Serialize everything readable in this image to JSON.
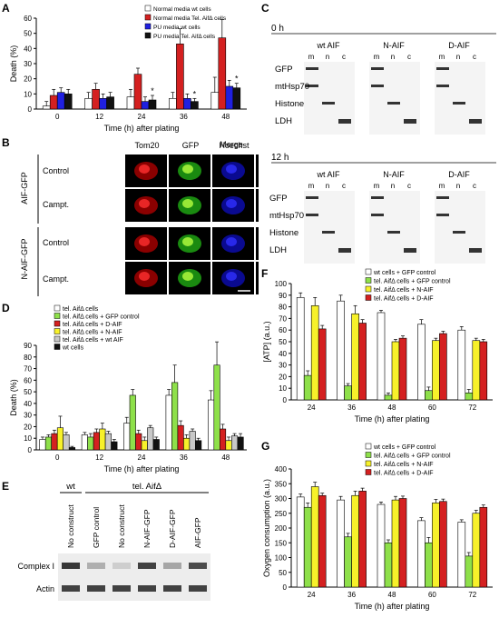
{
  "panels": [
    "A",
    "B",
    "C",
    "D",
    "E",
    "F",
    "G"
  ],
  "colors": {
    "white": "#ffffff",
    "red": "#d42020",
    "blue": "#2020e0",
    "black": "#111111",
    "green": "#8ee04a",
    "yellow": "#f7f12a",
    "grey": "#c8c8c8"
  },
  "chart_data": [
    {
      "panel": "A",
      "type": "bar",
      "categories": [
        "0",
        "12",
        "24",
        "36",
        "48"
      ],
      "xlabel": "Time (h) after plating",
      "ylabel": "Death (%)",
      "ylim": [
        0,
        60
      ],
      "yticks": [
        0,
        10,
        20,
        30,
        40,
        50,
        60
      ],
      "legend": [
        "Normal media wt cells",
        "Normal media Tel. AifΔ cells",
        "PU media wt cells",
        "PU media Tel. AifΔ cells"
      ],
      "series": [
        {
          "name": "Normal media wt cells",
          "color": "#ffffff",
          "values": [
            2,
            7,
            8,
            7,
            11
          ],
          "err": [
            3,
            4,
            5,
            4,
            10
          ]
        },
        {
          "name": "Normal media Tel. AifΔ cells",
          "color": "#d42020",
          "values": [
            9,
            13,
            23,
            43,
            47
          ],
          "err": [
            4,
            4,
            4,
            10,
            12
          ]
        },
        {
          "name": "PU media wt cells",
          "color": "#2020e0",
          "values": [
            11,
            7,
            5,
            7,
            15
          ],
          "err": [
            3,
            3,
            3,
            3,
            4
          ]
        },
        {
          "name": "PU media Tel. AifΔ cells",
          "color": "#111111",
          "values": [
            10,
            8,
            6,
            5,
            14
          ],
          "err": [
            3,
            3,
            3,
            2,
            3
          ]
        }
      ],
      "stars": [
        "",
        "",
        "*",
        "*",
        "*"
      ]
    },
    {
      "panel": "D",
      "type": "bar",
      "categories": [
        "0",
        "12",
        "24",
        "36",
        "48"
      ],
      "xlabel": "Time (h) after plating",
      "ylabel": "Death (%)",
      "ylim": [
        0,
        90
      ],
      "yticks": [
        0,
        10,
        20,
        30,
        40,
        50,
        60,
        70,
        80,
        90
      ],
      "legend": [
        "tel. AifΔ cells",
        "tel. AifΔ cells + GFP control",
        "tel. AifΔ cells + D-AIF",
        "tel. AifΔ cells + N-AIF",
        "tel. AifΔ cells + wt AIF",
        "wt cells"
      ],
      "series": [
        {
          "name": "tel. AifΔ cells",
          "color": "#ffffff",
          "values": [
            9,
            13,
            23,
            47,
            43
          ],
          "err": [
            2,
            2,
            5,
            5,
            8
          ]
        },
        {
          "name": "tel. AifΔ cells + GFP control",
          "color": "#8ee04a",
          "values": [
            11,
            11,
            47,
            58,
            73
          ],
          "err": [
            2,
            3,
            5,
            15,
            20
          ]
        },
        {
          "name": "tel. AifΔ cells + D-AIF",
          "color": "#d42020",
          "values": [
            14,
            15,
            14,
            21,
            18
          ],
          "err": [
            3,
            3,
            3,
            4,
            4
          ]
        },
        {
          "name": "tel. AifΔ cells + N-AIF",
          "color": "#f7f12a",
          "values": [
            19,
            18,
            8,
            10,
            8
          ],
          "err": [
            10,
            5,
            3,
            3,
            3
          ]
        },
        {
          "name": "tel. AifΔ cells + wt AIF",
          "color": "#c8c8c8",
          "values": [
            13,
            14,
            19,
            16,
            12
          ],
          "err": [
            2,
            2,
            2,
            2,
            2
          ]
        },
        {
          "name": "wt cells",
          "color": "#111111",
          "values": [
            2,
            7,
            9,
            8,
            11
          ],
          "err": [
            1,
            2,
            2,
            2,
            3
          ]
        }
      ]
    },
    {
      "panel": "F",
      "type": "bar",
      "categories": [
        "24",
        "36",
        "48",
        "60",
        "72"
      ],
      "xlabel": "Time (h) after plating",
      "ylabel": "[ATP] (a.u.)",
      "ylim": [
        0,
        100
      ],
      "yticks": [
        0,
        10,
        20,
        30,
        40,
        50,
        60,
        70,
        80,
        90,
        100
      ],
      "legend": [
        "wt cells + GFP control",
        "tel. AifΔ cells + GFP control",
        "tel. AifΔ cells + N-AIF",
        "tel. AifΔ cells + D-AIF"
      ],
      "series": [
        {
          "name": "wt cells + GFP control",
          "color": "#ffffff",
          "values": [
            88,
            85,
            75,
            65,
            60
          ],
          "err": [
            4,
            5,
            2,
            4,
            3
          ]
        },
        {
          "name": "tel. AifΔ cells + GFP control",
          "color": "#8ee04a",
          "values": [
            21,
            12,
            4,
            8,
            6
          ],
          "err": [
            4,
            2,
            2,
            3,
            3
          ]
        },
        {
          "name": "tel. AifΔ cells + N-AIF",
          "color": "#f7f12a",
          "values": [
            81,
            74,
            50,
            51,
            51
          ],
          "err": [
            7,
            7,
            2,
            2,
            2
          ]
        },
        {
          "name": "tel. AifΔ cells + D-AIF",
          "color": "#d42020",
          "values": [
            61,
            66,
            53,
            57,
            50
          ],
          "err": [
            3,
            3,
            2,
            2,
            2
          ]
        }
      ]
    },
    {
      "panel": "G",
      "type": "bar",
      "categories": [
        "24",
        "36",
        "48",
        "60",
        "72"
      ],
      "xlabel": "Time (h) after plating",
      "ylabel": "Oxygen consumption (a.u.)",
      "ylim": [
        0,
        400
      ],
      "yticks": [
        0,
        50,
        100,
        150,
        200,
        250,
        300,
        350,
        400
      ],
      "legend": [
        "wt cells + GFP control",
        "tel. AifΔ cells + GFP control",
        "tel. AifΔ cells + N-AIF",
        "tel. AifΔ cells + D-AIF"
      ],
      "series": [
        {
          "name": "wt cells + GFP control",
          "color": "#ffffff",
          "values": [
            305,
            295,
            280,
            225,
            220
          ],
          "err": [
            10,
            12,
            8,
            10,
            8
          ]
        },
        {
          "name": "tel. AifΔ cells + GFP control",
          "color": "#8ee04a",
          "values": [
            270,
            170,
            150,
            150,
            105
          ],
          "err": [
            15,
            12,
            10,
            18,
            12
          ]
        },
        {
          "name": "tel. AifΔ cells + N-AIF",
          "color": "#f7f12a",
          "values": [
            340,
            310,
            295,
            285,
            250
          ],
          "err": [
            15,
            15,
            12,
            12,
            10
          ]
        },
        {
          "name": "tel. AifΔ cells + D-AIF",
          "color": "#d42020",
          "values": [
            310,
            325,
            300,
            290,
            270
          ],
          "err": [
            8,
            10,
            8,
            8,
            8
          ]
        }
      ]
    }
  ],
  "panelB": {
    "columns": [
      "Tom20",
      "GFP",
      "Hoechst",
      "Merge"
    ],
    "groups": [
      "AIF-GFP",
      "N-AIF-GFP"
    ],
    "rows": [
      "Control",
      "Campt.",
      "Control",
      "Campt."
    ]
  },
  "panelC": {
    "times": [
      "0 h",
      "12 h"
    ],
    "constructs": [
      "wt AIF",
      "N-AIF",
      "D-AIF"
    ],
    "lanes": [
      "m",
      "n",
      "c"
    ],
    "markers": [
      "GFP",
      "mtHsp70",
      "Histone",
      "LDH"
    ]
  },
  "panelE": {
    "groups": [
      "wt",
      "tel. AifΔ"
    ],
    "lanes": [
      "No construct",
      "GFP control",
      "No construct",
      "N-AIF-GFP",
      "D-AIF-GFP",
      "AIF-GFP"
    ],
    "rows": [
      "Complex I",
      "Actin"
    ]
  }
}
